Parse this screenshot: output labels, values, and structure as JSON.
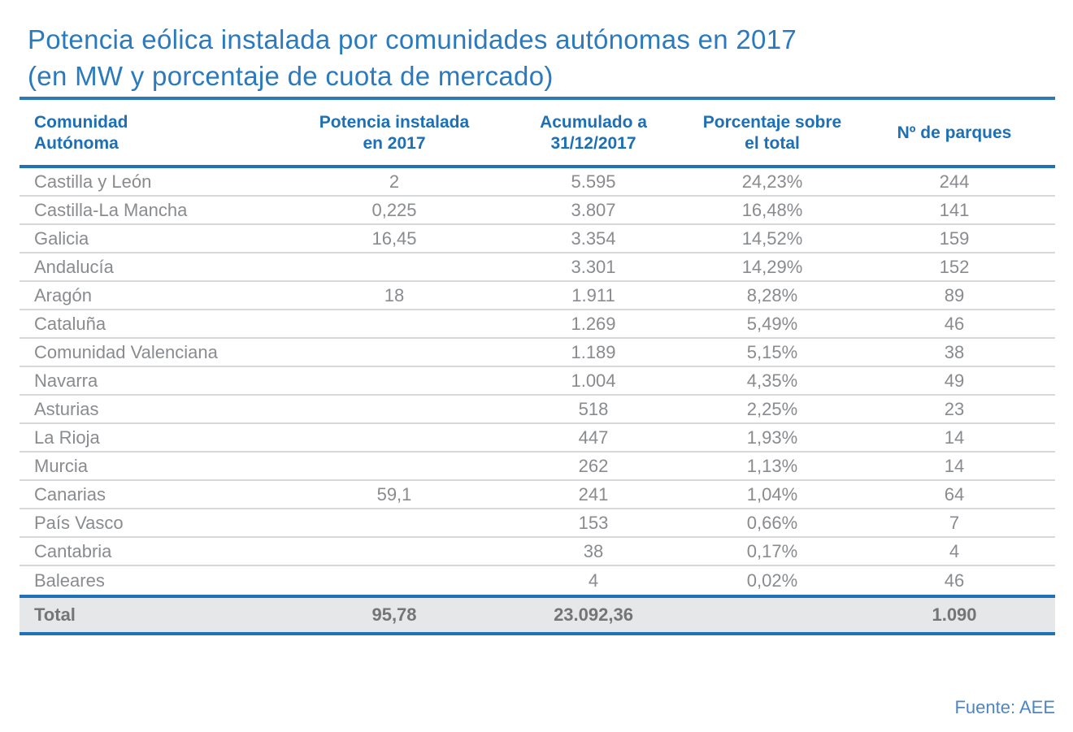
{
  "title": {
    "line1": "Potencia eólica instalada por comunidades autónomas en 2017",
    "line2": "(en MW y porcentaje de cuota de mercado)"
  },
  "source": "Fuente: AEE",
  "colors": {
    "title_blue": "#2b7abd",
    "header_blue": "#1d6fb6",
    "rule_blue": "#1f72b8",
    "rule_blue_light": "#2e7ab9",
    "separator": "#d7d8d9",
    "text_gray": "#898b8e",
    "total_text": "#737577",
    "total_bg": "#e6e7e8",
    "source_blue": "#4e86c2"
  },
  "table": {
    "columns_display": [
      "Comunidad\nAutónoma",
      "Potencia instalada\nen 2017",
      "Acumulado a\n31/12/2017",
      "Porcentaje sobre\nel total",
      "Nº de parques"
    ],
    "rows": [
      {
        "community": "Castilla y León",
        "installed_2017": "2",
        "accumulated": "5.595",
        "share": "24,23%",
        "parks": "244"
      },
      {
        "community": "Castilla-La Mancha",
        "installed_2017": "0,225",
        "accumulated": "3.807",
        "share": "16,48%",
        "parks": "141"
      },
      {
        "community": "Galicia",
        "installed_2017": "16,45",
        "accumulated": "3.354",
        "share": "14,52%",
        "parks": "159"
      },
      {
        "community": "Andalucía",
        "installed_2017": "",
        "accumulated": "3.301",
        "share": "14,29%",
        "parks": "152"
      },
      {
        "community": "Aragón",
        "installed_2017": "18",
        "accumulated": "1.911",
        "share": "8,28%",
        "parks": "89"
      },
      {
        "community": "Cataluña",
        "installed_2017": "",
        "accumulated": "1.269",
        "share": "5,49%",
        "parks": "46"
      },
      {
        "community": "Comunidad Valenciana",
        "installed_2017": "",
        "accumulated": "1.189",
        "share": "5,15%",
        "parks": "38"
      },
      {
        "community": "Navarra",
        "installed_2017": "",
        "accumulated": "1.004",
        "share": "4,35%",
        "parks": "49"
      },
      {
        "community": "Asturias",
        "installed_2017": "",
        "accumulated": "518",
        "share": "2,25%",
        "parks": "23"
      },
      {
        "community": "La Rioja",
        "installed_2017": "",
        "accumulated": "447",
        "share": "1,93%",
        "parks": "14"
      },
      {
        "community": "Murcia",
        "installed_2017": "",
        "accumulated": "262",
        "share": "1,13%",
        "parks": "14"
      },
      {
        "community": "Canarias",
        "installed_2017": "59,1",
        "accumulated": "241",
        "share": "1,04%",
        "parks": "64"
      },
      {
        "community": "País Vasco",
        "installed_2017": "",
        "accumulated": "153",
        "share": "0,66%",
        "parks": "7"
      },
      {
        "community": "Cantabria",
        "installed_2017": "",
        "accumulated": "38",
        "share": "0,17%",
        "parks": "4"
      },
      {
        "community": "Baleares",
        "installed_2017": "",
        "accumulated": "4",
        "share": "0,02%",
        "parks": "46"
      }
    ],
    "total": {
      "label": "Total",
      "installed_2017": "95,78",
      "accumulated": "23.092,36",
      "share": "",
      "parks": "1.090"
    }
  },
  "chart_data": {
    "type": "table",
    "title": "Potencia eólica instalada por comunidades autónomas en 2017 (en MW y porcentaje de cuota de mercado)",
    "columns": [
      "Comunidad Autónoma",
      "Potencia instalada en 2017",
      "Acumulado a 31/12/2017",
      "Porcentaje sobre el total",
      "Nº de parques"
    ],
    "rows": [
      [
        "Castilla y León",
        "2",
        "5.595",
        "24,23%",
        "244"
      ],
      [
        "Castilla-La Mancha",
        "0,225",
        "3.807",
        "16,48%",
        "141"
      ],
      [
        "Galicia",
        "16,45",
        "3.354",
        "14,52%",
        "159"
      ],
      [
        "Andalucía",
        "",
        "3.301",
        "14,29%",
        "152"
      ],
      [
        "Aragón",
        "18",
        "1.911",
        "8,28%",
        "89"
      ],
      [
        "Cataluña",
        "",
        "1.269",
        "5,49%",
        "46"
      ],
      [
        "Comunidad Valenciana",
        "",
        "1.189",
        "5,15%",
        "38"
      ],
      [
        "Navarra",
        "",
        "1.004",
        "4,35%",
        "49"
      ],
      [
        "Asturias",
        "",
        "518",
        "2,25%",
        "23"
      ],
      [
        "La Rioja",
        "",
        "447",
        "1,93%",
        "14"
      ],
      [
        "Murcia",
        "",
        "262",
        "1,13%",
        "14"
      ],
      [
        "Canarias",
        "59,1",
        "241",
        "1,04%",
        "64"
      ],
      [
        "País Vasco",
        "",
        "153",
        "0,66%",
        "7"
      ],
      [
        "Cantabria",
        "",
        "38",
        "0,17%",
        "4"
      ],
      [
        "Baleares",
        "",
        "4",
        "0,02%",
        "46"
      ]
    ],
    "total_row": [
      "Total",
      "95,78",
      "23.092,36",
      "",
      "1.090"
    ],
    "source": "Fuente: AEE"
  }
}
